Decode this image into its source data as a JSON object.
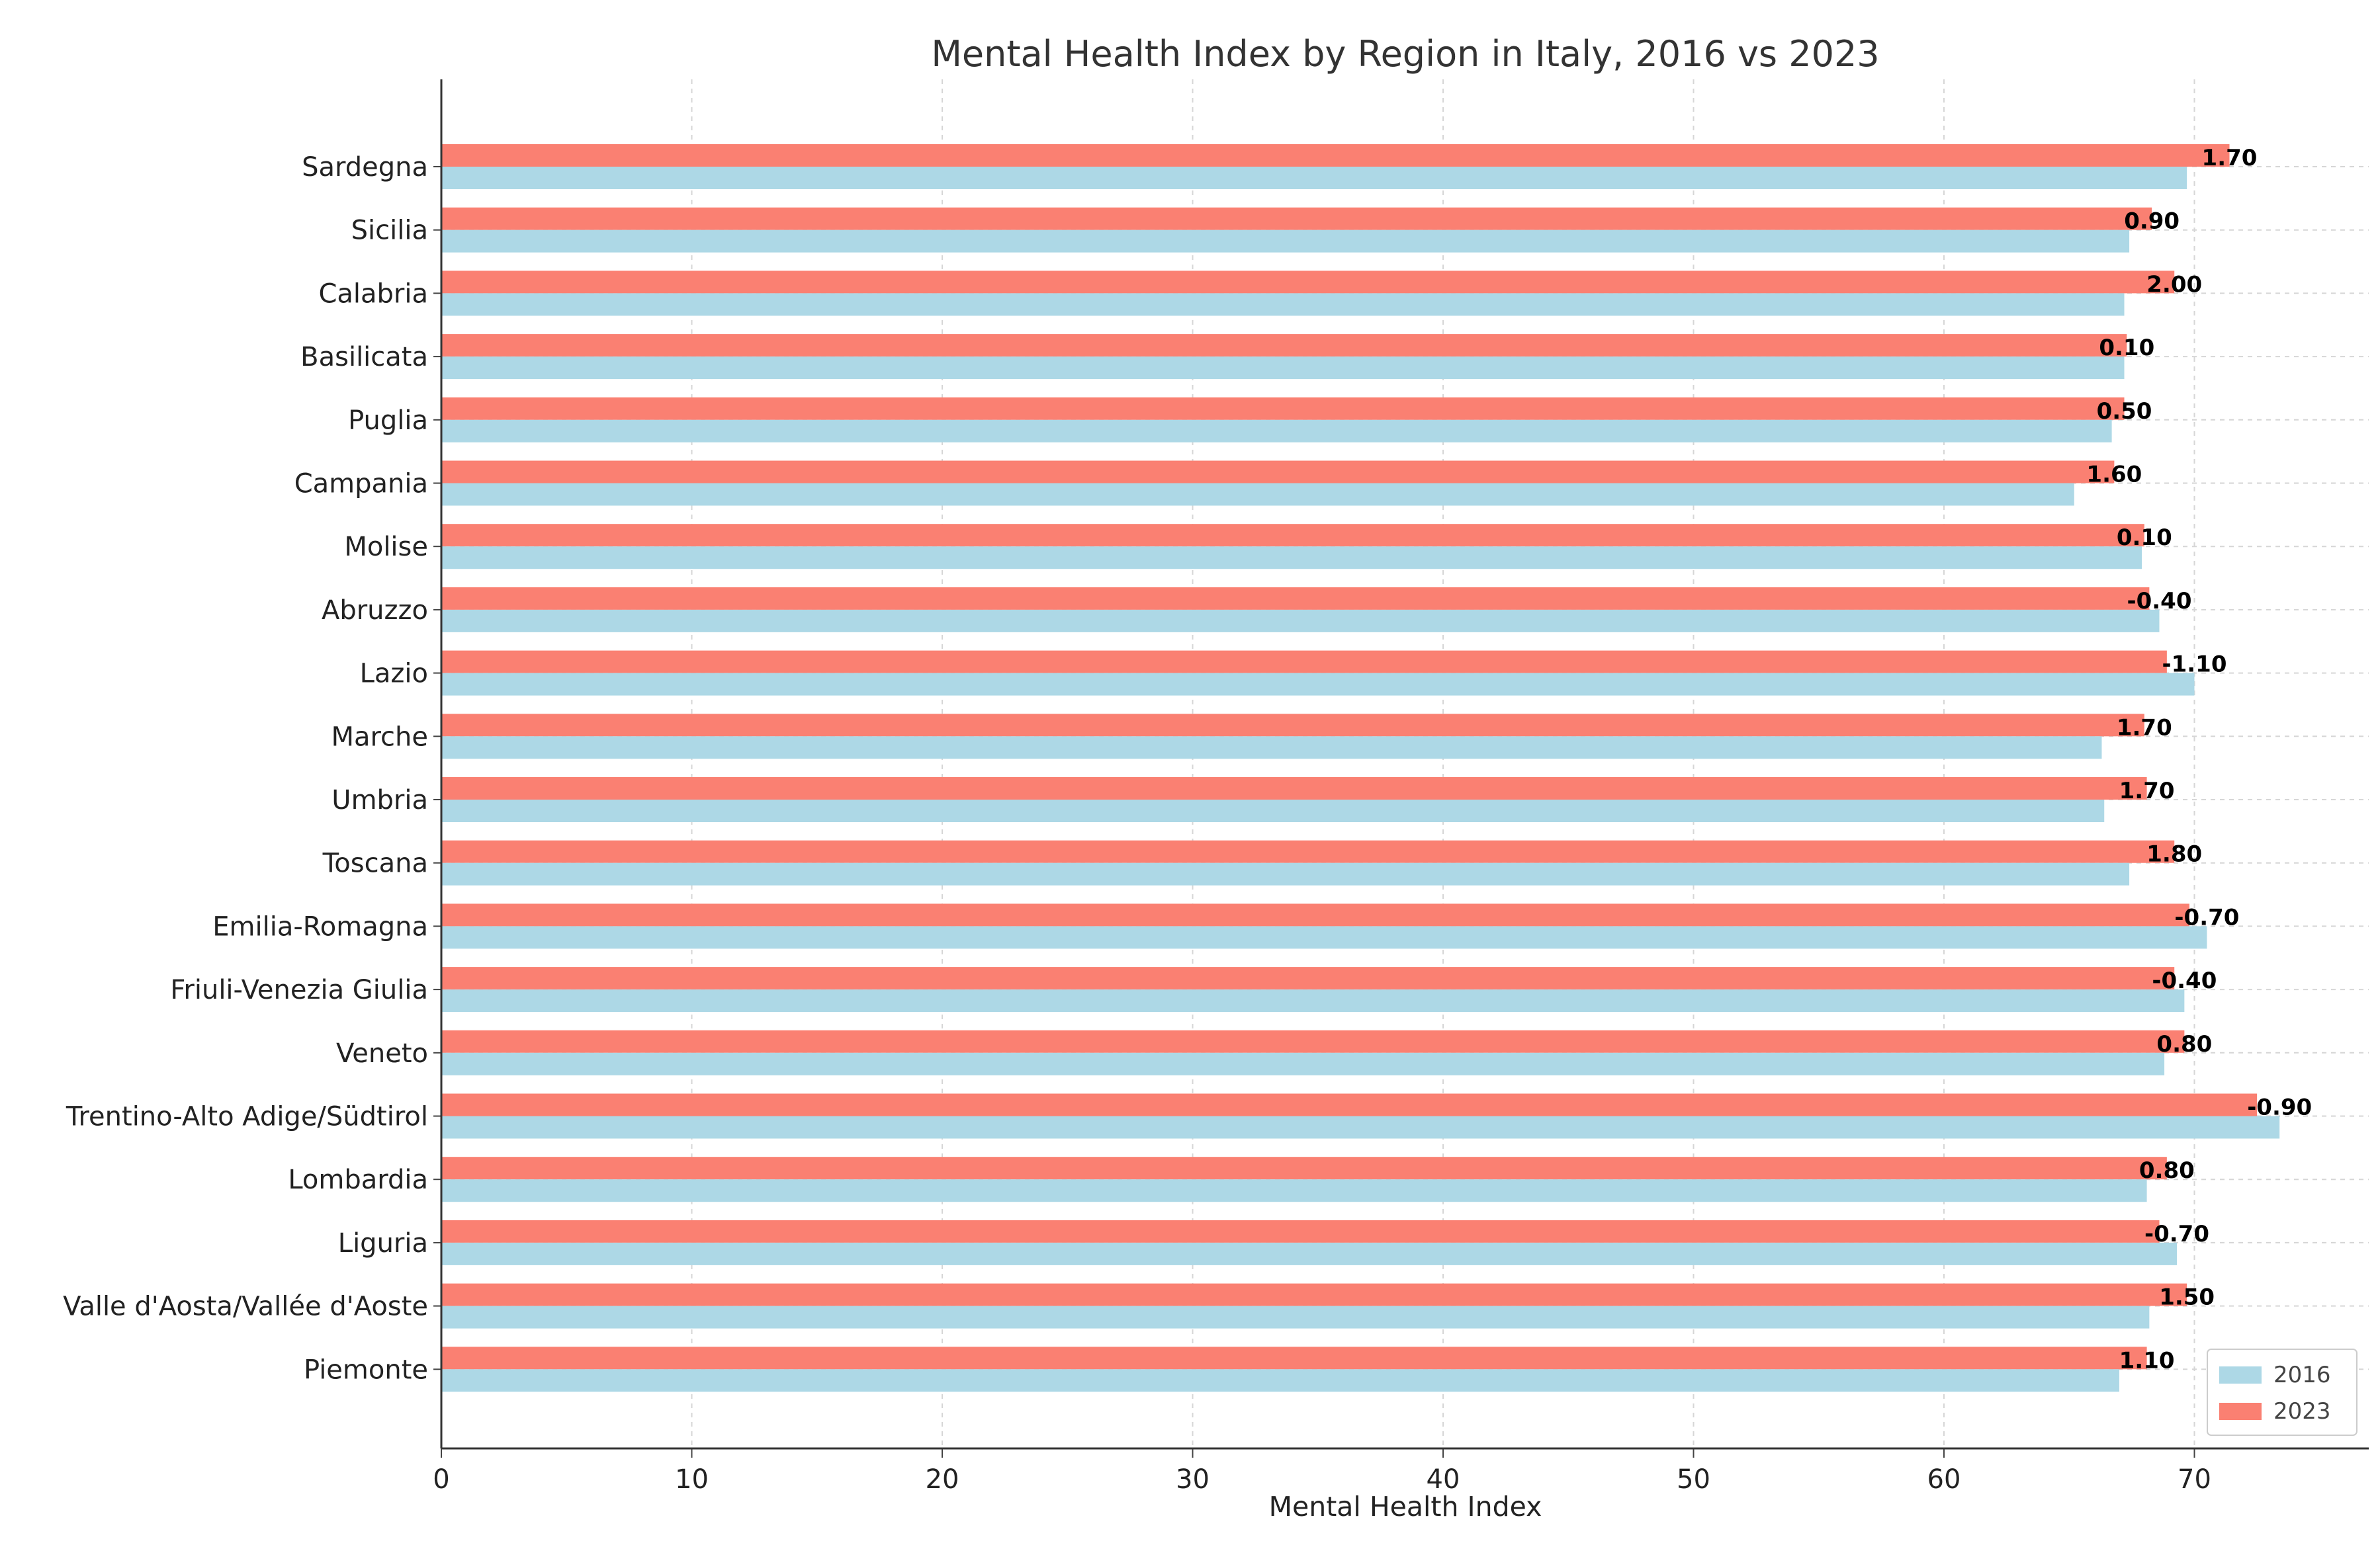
{
  "chart_data": {
    "type": "bar",
    "orientation": "horizontal",
    "title": "Mental Health Index by Region in Italy, 2016 vs 2023",
    "xlabel": "Mental Health Index",
    "ylabel": "",
    "xlim": [
      0,
      77
    ],
    "xticks": [
      0,
      10,
      20,
      30,
      40,
      50,
      60,
      70
    ],
    "grid": true,
    "legend_position": "bottom-right",
    "categories": [
      "Sardegna",
      "Sicilia",
      "Calabria",
      "Basilicata",
      "Puglia",
      "Campania",
      "Molise",
      "Abruzzo",
      "Lazio",
      "Marche",
      "Umbria",
      "Toscana",
      "Emilia-Romagna",
      "Friuli-Venezia Giulia",
      "Veneto",
      "Trentino-Alto Adige/Südtirol",
      "Lombardia",
      "Liguria",
      "Valle d'Aosta/Vallée d'Aoste",
      "Piemonte"
    ],
    "series": [
      {
        "name": "2016",
        "color": "#add8e6",
        "values": [
          69.7,
          67.4,
          67.2,
          67.2,
          66.7,
          65.2,
          67.9,
          68.6,
          70.0,
          66.3,
          66.4,
          67.4,
          70.5,
          69.6,
          68.8,
          73.4,
          68.1,
          69.3,
          68.2,
          67.0
        ]
      },
      {
        "name": "2023",
        "color": "#fa8072",
        "values": [
          71.4,
          68.3,
          69.2,
          67.3,
          67.2,
          66.8,
          68.0,
          68.2,
          68.9,
          68.0,
          68.1,
          69.2,
          69.8,
          69.2,
          69.6,
          72.5,
          68.9,
          68.6,
          69.7,
          68.1
        ]
      }
    ],
    "annotations": [
      "1.70",
      "0.90",
      "2.00",
      "0.10",
      "0.50",
      "1.60",
      "0.10",
      "-0.40",
      "-1.10",
      "1.70",
      "1.70",
      "1.80",
      "-0.70",
      "-0.40",
      "0.80",
      "-0.90",
      "0.80",
      "-0.70",
      "1.50",
      "1.10"
    ]
  }
}
